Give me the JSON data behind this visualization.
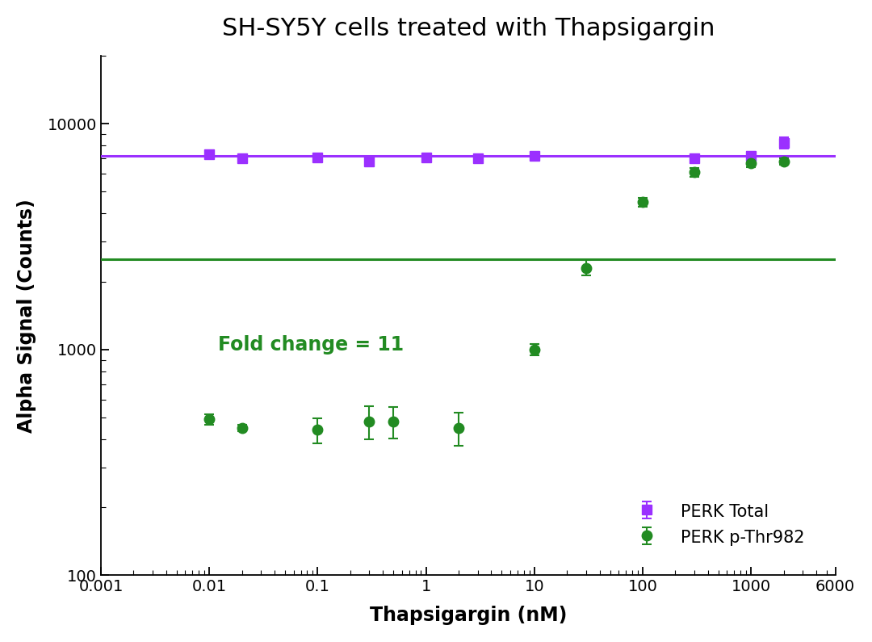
{
  "title": "SH-SY5Y cells treated with Thapsigargin",
  "xlabel": "Thapsigargin (nM)",
  "ylabel": "Alpha Signal (Counts)",
  "fold_change_text": "Fold change = 11",
  "fold_change_x": 0.012,
  "fold_change_y": 1050,
  "perk_total_x": [
    0.01,
    0.02,
    0.1,
    0.3,
    1.0,
    3.0,
    10.0,
    300.0,
    1000.0,
    2000.0
  ],
  "perk_total_y": [
    7300,
    7000,
    7100,
    6800,
    7100,
    7000,
    7200,
    7000,
    7200,
    8200
  ],
  "perk_total_yerr": [
    280,
    150,
    180,
    220,
    180,
    180,
    250,
    230,
    280,
    480
  ],
  "perk_phospho_x": [
    0.01,
    0.02,
    0.1,
    0.3,
    0.5,
    2.0,
    10.0,
    30.0,
    100.0,
    300.0,
    1000.0,
    2000.0
  ],
  "perk_phospho_y": [
    490,
    450,
    440,
    480,
    480,
    450,
    1000,
    2300,
    4500,
    6100,
    6700,
    6800
  ],
  "perk_phospho_yerr": [
    25,
    15,
    55,
    80,
    75,
    75,
    55,
    180,
    200,
    280,
    280,
    220
  ],
  "perk_total_color": "#9B30FF",
  "perk_phospho_color": "#228B22",
  "marker_total": "s",
  "marker_phospho": "o",
  "markersize": 9,
  "linewidth": 2.2,
  "xlim": [
    0.001,
    6000
  ],
  "ylim": [
    100,
    20000
  ],
  "yticks": [
    100,
    1000,
    10000
  ],
  "ytick_labels": [
    "100",
    "1000",
    "10000"
  ],
  "xticks": [
    0.001,
    0.01,
    0.1,
    1,
    10,
    100,
    1000,
    6000
  ],
  "xtick_labels": [
    "0.001",
    "0.01",
    "0.1",
    "1",
    "10",
    "100",
    "1000",
    "6000"
  ],
  "legend_labels": [
    "PERK Total",
    "PERK p-Thr982"
  ],
  "background_color": "#ffffff",
  "title_fontsize": 22,
  "axis_label_fontsize": 17,
  "tick_fontsize": 14,
  "legend_fontsize": 15,
  "annotation_fontsize": 17
}
